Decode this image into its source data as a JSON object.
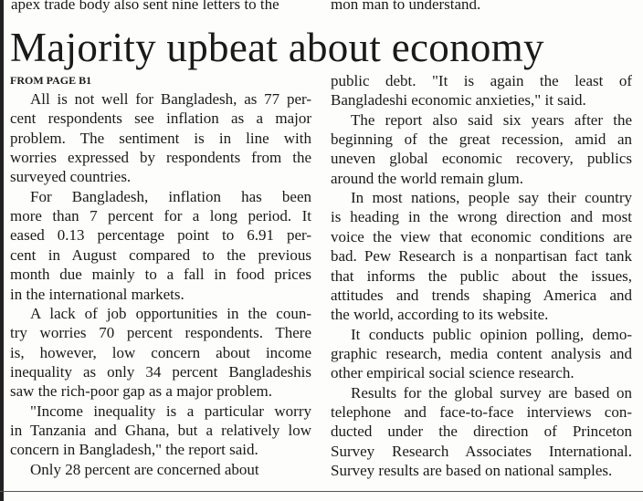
{
  "top_fragment": {
    "left": "apex trade body also sent nine letters to the",
    "right": "mon man to understand."
  },
  "headline": "Majority upbeat about economy",
  "jump_line": "FROM PAGE B1",
  "columns": [
    {
      "paragraphs": [
        {
          "lines": [
            "All is not well for Bangladesh, as 77 per-",
            "cent respondents see inflation as a major",
            "problem. The sentiment is in line with",
            "worries expressed by respondents from the",
            "surveyed countries."
          ]
        },
        {
          "lines": [
            "For Bangladesh, inflation has been",
            "more than 7 percent for a long period. It",
            "eased 0.13 percentage point to 6.91 per-",
            "cent in August compared to the previous",
            "month due mainly to a fall in food prices",
            "in the international markets."
          ]
        },
        {
          "lines": [
            "A lack of job opportunities in the coun-",
            "try worries 70 percent respondents. There",
            "is, however, low concern about income",
            "inequality as only 34 percent Bangladeshis",
            "saw the rich-poor gap as a major problem."
          ]
        },
        {
          "lines": [
            "\"Income inequality is a particular worry",
            "in Tanzania and Ghana, but a relatively low",
            "concern in Bangladesh,\" the report said."
          ]
        },
        {
          "lines": [
            "Only 28 percent are concerned about"
          ]
        }
      ]
    },
    {
      "paragraphs": [
        {
          "lines": [
            "public debt. \"It is again the least of",
            "Bangladeshi economic anxieties,\" it said."
          ]
        },
        {
          "lines": [
            "The report also said six years after the",
            "beginning of the great recession, amid an",
            "uneven global economic recovery, publics",
            "around the world remain glum."
          ]
        },
        {
          "lines": [
            "In most nations, people say their country",
            "is heading in the wrong direction and most",
            "voice the view that economic conditions are",
            "bad. Pew Research is a nonpartisan fact tank",
            "that informs the public about the issues,",
            "attitudes and trends shaping America and",
            "the world, according to its website."
          ]
        },
        {
          "lines": [
            "It conducts public opinion polling, demo-",
            "graphic research, media content analysis and",
            "other empirical social science research."
          ]
        },
        {
          "lines": [
            "Results for the global survey are based on",
            "telephone and face-to-face interviews con-",
            "ducted under the direction of Princeton",
            "Survey Research Associates International.",
            "Survey results are based on national samples."
          ]
        }
      ]
    }
  ]
}
